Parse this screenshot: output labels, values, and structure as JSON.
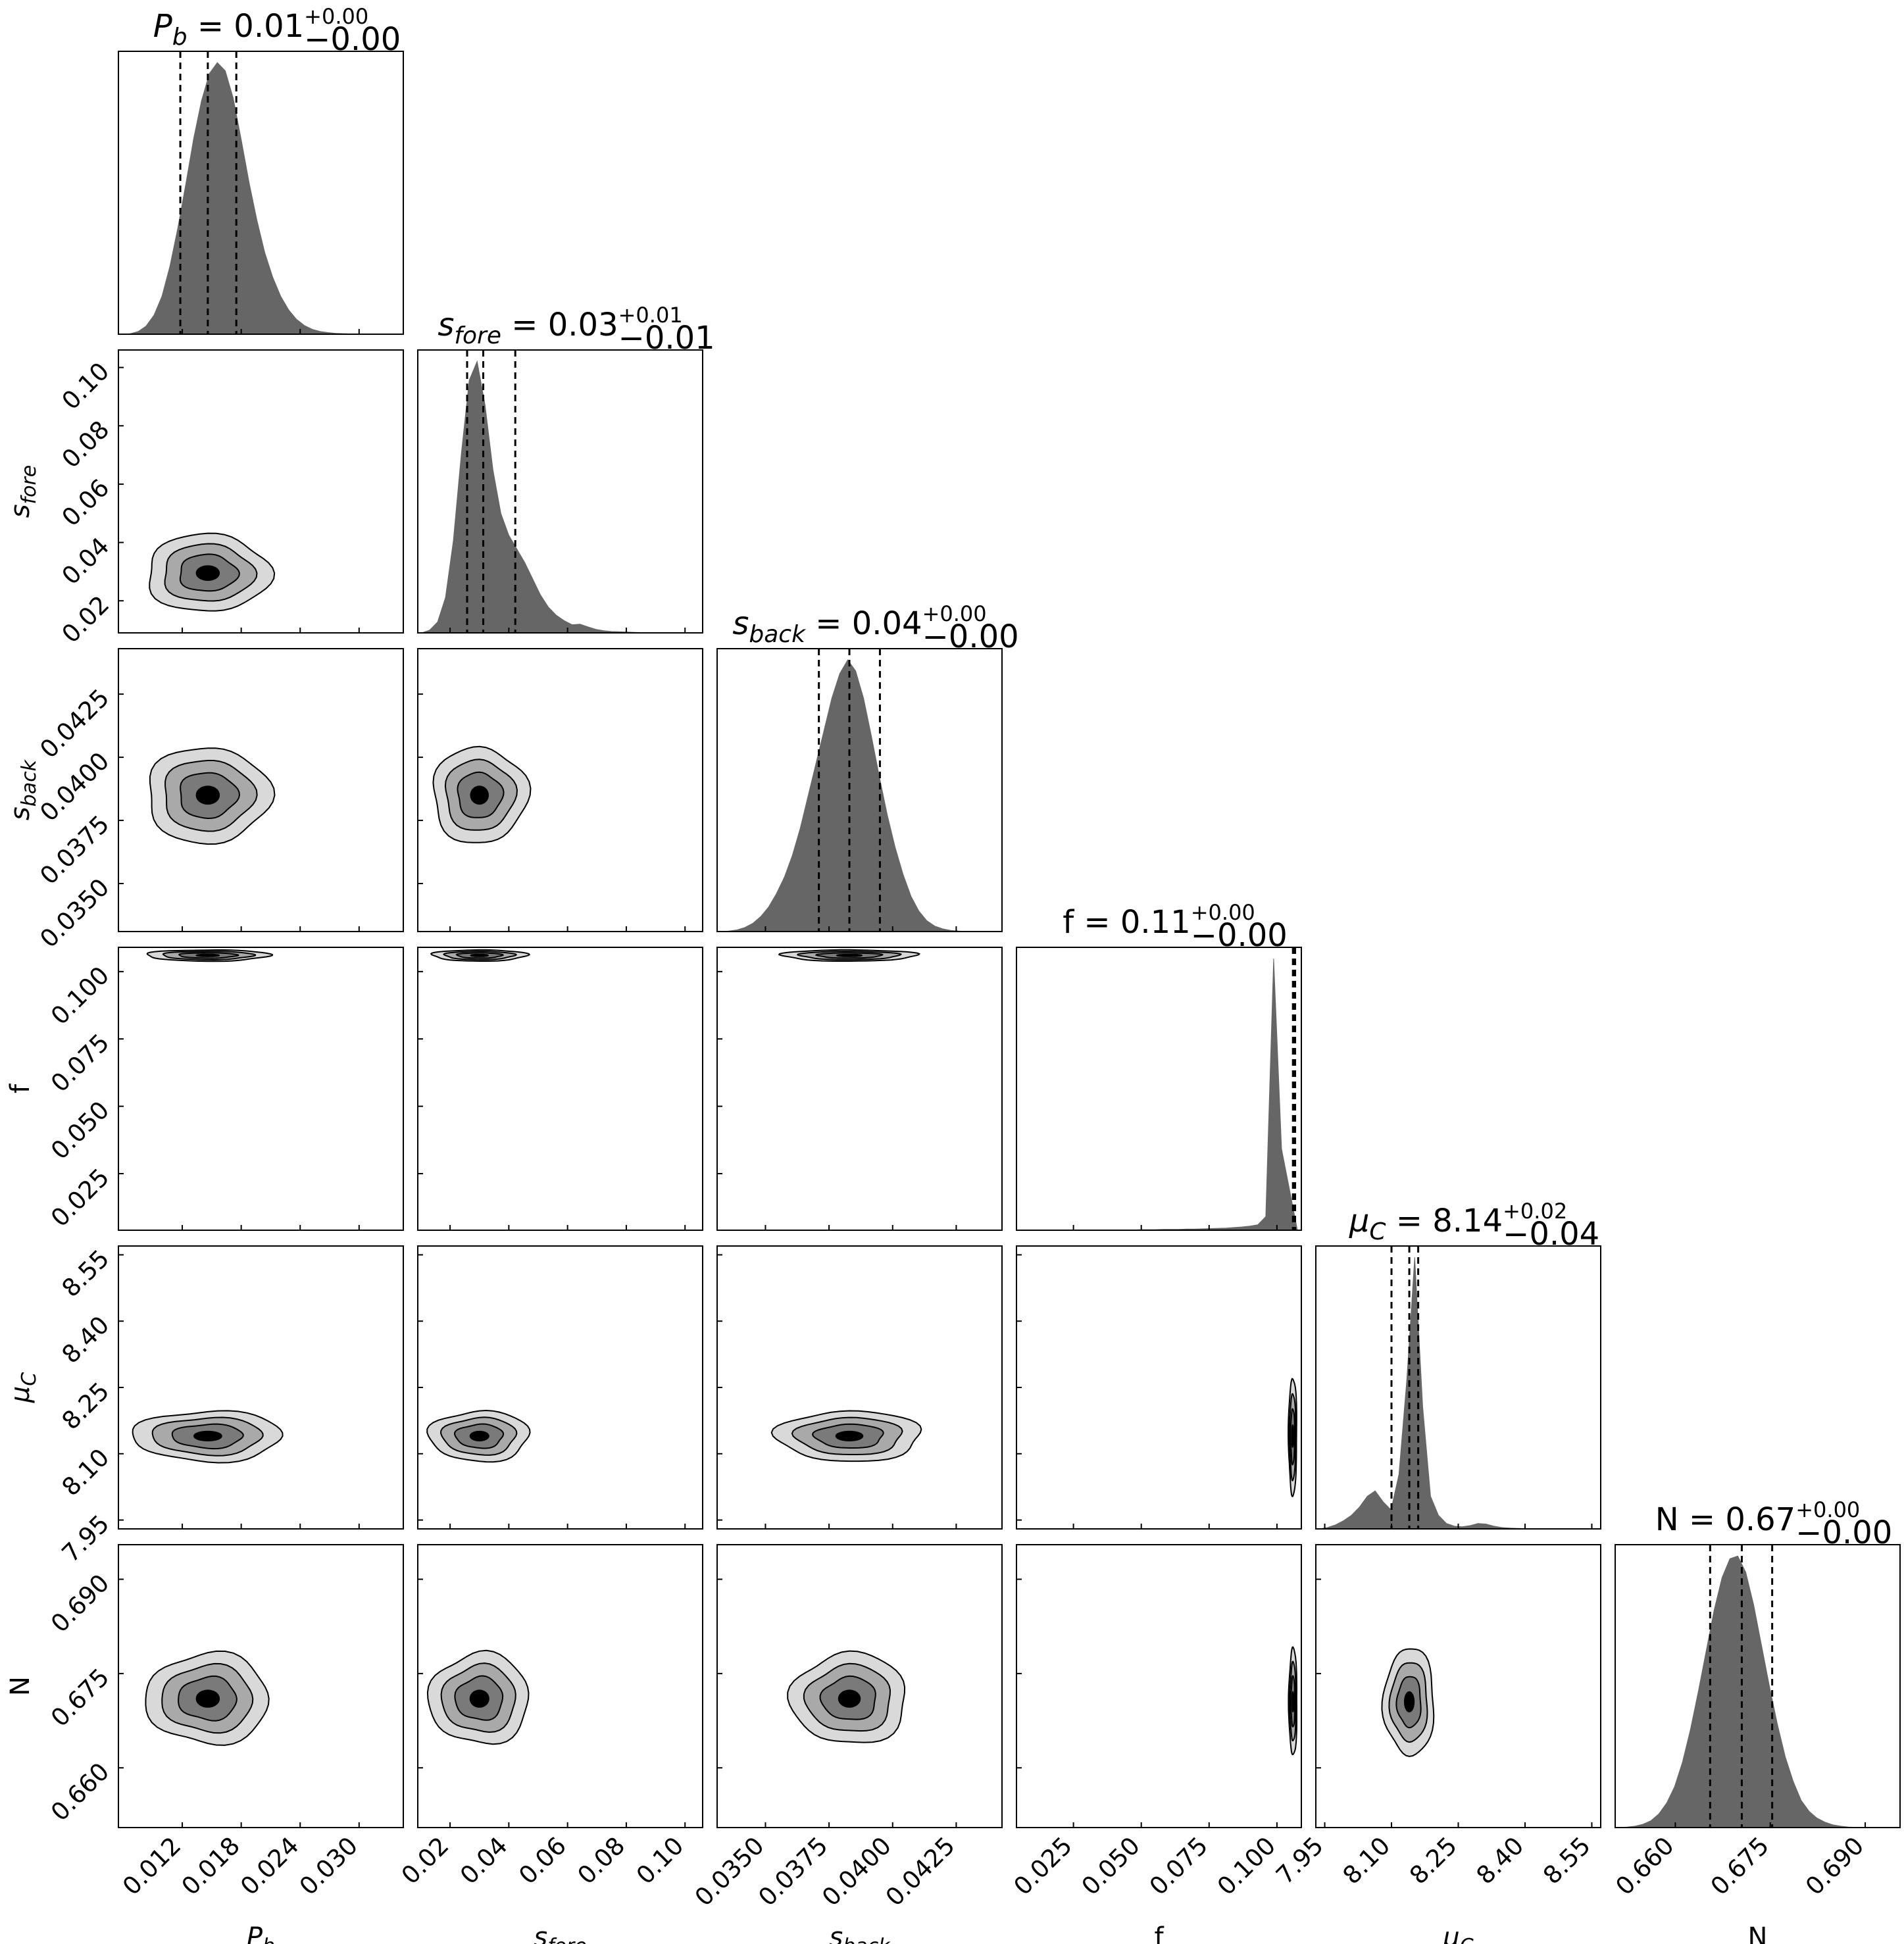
{
  "chart_data": {
    "type": "corner",
    "parameters": [
      {
        "key": "Pb",
        "label_base": "P",
        "label_sub": "b",
        "label": "P_b",
        "range": [
          0.0055,
          0.0345
        ],
        "ticks": [
          "0.012",
          "0.018",
          "0.024",
          "0.030"
        ],
        "median": 0.0146,
        "q16": 0.0118,
        "q84": 0.0175,
        "title_value": "0.01",
        "err_plus": "+0.00",
        "err_minus": "−0.00",
        "hist": [
          0,
          0.002,
          0.01,
          0.03,
          0.07,
          0.14,
          0.25,
          0.39,
          0.55,
          0.72,
          0.86,
          0.96,
          1.0,
          0.97,
          0.87,
          0.72,
          0.56,
          0.42,
          0.3,
          0.21,
          0.14,
          0.09,
          0.055,
          0.032,
          0.018,
          0.01,
          0.006,
          0.003,
          0.002,
          0.001,
          0,
          0,
          0,
          0,
          0,
          0
        ]
      },
      {
        "key": "sfore",
        "label_base": "s",
        "label_sub": "fore",
        "label": "s_fore",
        "range": [
          0.009,
          0.106
        ],
        "ticks": [
          "0.02",
          "0.04",
          "0.06",
          "0.08",
          "0.10"
        ],
        "median": 0.0313,
        "q16": 0.0258,
        "q84": 0.0422,
        "title_value": "0.03",
        "err_plus": "+0.01",
        "err_minus": "−0.01",
        "hist": [
          0,
          0.01,
          0.04,
          0.13,
          0.34,
          0.66,
          0.93,
          1.0,
          0.84,
          0.6,
          0.44,
          0.36,
          0.31,
          0.26,
          0.2,
          0.14,
          0.095,
          0.065,
          0.045,
          0.03,
          0.032,
          0.022,
          0.013,
          0.008,
          0.005,
          0.004,
          0.003,
          0.002,
          0.001,
          0.001,
          0,
          0,
          0,
          0,
          0,
          0
        ]
      },
      {
        "key": "sback",
        "label_base": "s",
        "label_sub": "back",
        "label": "s_back",
        "range": [
          0.0331,
          0.0443
        ],
        "ticks": [
          "0.0350",
          "0.0375",
          "0.0400",
          "0.0425"
        ],
        "median": 0.0383,
        "q16": 0.0371,
        "q84": 0.0395,
        "title_value": "0.04",
        "err_plus": "+0.00",
        "err_minus": "−0.00",
        "hist": [
          0,
          0.002,
          0.006,
          0.015,
          0.03,
          0.055,
          0.09,
          0.14,
          0.2,
          0.28,
          0.38,
          0.5,
          0.62,
          0.74,
          0.86,
          0.95,
          1.0,
          0.96,
          0.86,
          0.72,
          0.57,
          0.43,
          0.31,
          0.21,
          0.13,
          0.075,
          0.04,
          0.02,
          0.01,
          0.004,
          0.002,
          0,
          0,
          0,
          0,
          0
        ]
      },
      {
        "key": "f",
        "label_base": "f",
        "label_sub": "",
        "label": "f",
        "range": [
          0.004,
          0.109
        ],
        "ticks": [
          "0.025",
          "0.050",
          "0.075",
          "0.100"
        ],
        "median": 0.1063,
        "q16": 0.1059,
        "q84": 0.1067,
        "title_value": "0.11",
        "err_plus": "+0.00",
        "err_minus": "−0.00",
        "hist": [
          0,
          0,
          0,
          0,
          0,
          0,
          0,
          0,
          0,
          0,
          0,
          0,
          0,
          0,
          0,
          0.002,
          0.002,
          0.002,
          0.003,
          0.003,
          0.003,
          0.004,
          0.004,
          0.005,
          0.006,
          0.007,
          0.008,
          0.01,
          0.012,
          0.015,
          0.02,
          0.05,
          1.0,
          0.3,
          0.15,
          0
        ]
      },
      {
        "key": "muC",
        "label_base": "μ",
        "label_sub": "C",
        "label": "μ_C",
        "range": [
          7.93,
          8.57
        ],
        "ticks": [
          "7.95",
          "8.10",
          "8.25",
          "8.40",
          "8.55"
        ],
        "median": 8.14,
        "q16": 8.1,
        "q84": 8.16,
        "title_value": "8.14",
        "err_plus": "+0.02",
        "err_minus": "−0.04",
        "hist": [
          0,
          0.005,
          0.015,
          0.03,
          0.05,
          0.08,
          0.12,
          0.14,
          0.1,
          0.07,
          0.2,
          0.55,
          1.0,
          0.45,
          0.12,
          0.05,
          0.02,
          0.01,
          0.008,
          0.012,
          0.02,
          0.018,
          0.01,
          0.005,
          0.003,
          0.002,
          0.001,
          0,
          0,
          0,
          0,
          0,
          0,
          0,
          0,
          0
        ]
      },
      {
        "key": "N",
        "label_base": "N",
        "label_sub": "",
        "label": "N",
        "range": [
          0.6505,
          0.6955
        ],
        "ticks": [
          "0.660",
          "0.675",
          "0.690"
        ],
        "median": 0.6705,
        "q16": 0.6655,
        "q84": 0.6753,
        "title_value": "0.67",
        "err_plus": "+0.00",
        "err_minus": "−0.00",
        "hist": [
          0,
          0.002,
          0.005,
          0.012,
          0.025,
          0.05,
          0.09,
          0.15,
          0.24,
          0.36,
          0.5,
          0.65,
          0.8,
          0.92,
          0.99,
          1.0,
          0.94,
          0.82,
          0.67,
          0.52,
          0.38,
          0.26,
          0.17,
          0.1,
          0.06,
          0.035,
          0.02,
          0.01,
          0.005,
          0.002,
          0.001,
          0,
          0,
          0,
          0,
          0
        ]
      }
    ],
    "y_tick_labels": [
      null,
      [
        "0.02",
        "0.04",
        "0.06",
        "0.08",
        "0.10"
      ],
      [
        "0.0350",
        "0.0375",
        "0.0400",
        "0.0425"
      ],
      [
        "0.025",
        "0.050",
        "0.075",
        "0.100"
      ],
      [
        "7.95",
        "8.10",
        "8.25",
        "8.40",
        "8.55"
      ],
      [
        "0.660",
        "0.675",
        "0.690"
      ]
    ],
    "contour_levels": [
      {
        "level": "outer",
        "color": "#d9d9d9"
      },
      {
        "level": "second",
        "color": "#a9a9a9"
      },
      {
        "level": "third",
        "color": "#7a7a7a"
      },
      {
        "level": "core",
        "color": "#000000"
      }
    ],
    "hist_color": "#666666",
    "quantile_line_style": "dashed",
    "contours": {
      "1_0": {
        "cx": 0.0146,
        "cy": 0.0295,
        "sx": 0.0033,
        "sy": 0.007
      },
      "2_0": {
        "cx": 0.0146,
        "cy": 0.0385,
        "sx": 0.0033,
        "sy": 0.001
      },
      "2_1": {
        "cx": 0.03,
        "cy": 0.0385,
        "sx": 0.0085,
        "sy": 0.001
      },
      "3_0": {
        "cx": 0.0146,
        "cy": 0.106,
        "sx": 0.0033,
        "sy": 0.0011
      },
      "3_1": {
        "cx": 0.03,
        "cy": 0.106,
        "sx": 0.0085,
        "sy": 0.0011
      },
      "3_2": {
        "cx": 0.0383,
        "cy": 0.106,
        "sx": 0.0014,
        "sy": 0.0011
      },
      "4_0": {
        "cx": 0.0146,
        "cy": 8.14,
        "sx": 0.004,
        "sy": 0.03
      },
      "4_1": {
        "cx": 0.03,
        "cy": 8.14,
        "sx": 0.009,
        "sy": 0.03
      },
      "4_2": {
        "cx": 0.0383,
        "cy": 8.14,
        "sx": 0.0015,
        "sy": 0.03
      },
      "4_3": {
        "cx": 0.1058,
        "cy": 8.14,
        "sx": 0.0008,
        "sy": 0.07
      },
      "5_0": {
        "cx": 0.0146,
        "cy": 0.671,
        "sx": 0.0033,
        "sy": 0.0038
      },
      "5_1": {
        "cx": 0.03,
        "cy": 0.671,
        "sx": 0.009,
        "sy": 0.0038
      },
      "5_2": {
        "cx": 0.0383,
        "cy": 0.671,
        "sx": 0.0012,
        "sy": 0.0038
      },
      "5_3": {
        "cx": 0.1059,
        "cy": 0.6705,
        "sx": 0.0008,
        "sy": 0.0045
      },
      "5_4": {
        "cx": 8.14,
        "cy": 0.6705,
        "sx": 0.03,
        "sy": 0.0045
      }
    }
  }
}
